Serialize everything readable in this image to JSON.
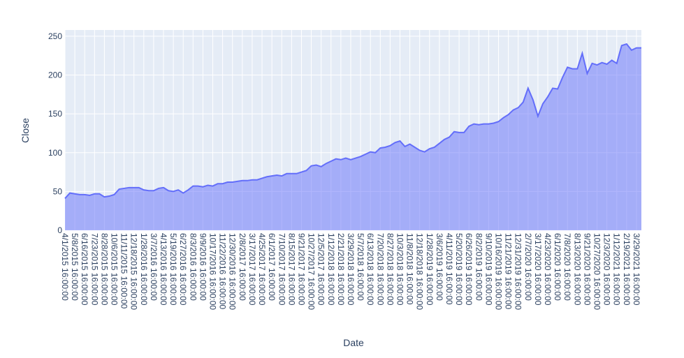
{
  "chart_data": {
    "type": "area",
    "x_label": "Date",
    "y_label": "Close",
    "categories": [
      "4/1/2015 16:00:00",
      null,
      "5/8/2015 16:00:00",
      null,
      "6/16/2015 16:00:00",
      null,
      "7/23/2015 16:00:00",
      null,
      "8/28/2015 16:00:00",
      null,
      "10/6/2015 16:00:00",
      null,
      "11/11/2015 16:00:00",
      null,
      "12/18/2015 16:00:00",
      null,
      "1/28/2016 16:00:00",
      null,
      "3/7/2016 16:00:00",
      null,
      "4/13/2016 16:00:00",
      null,
      "5/19/2016 16:00:00",
      null,
      "6/27/2016 16:00:00",
      null,
      "8/3/2016 16:00:00",
      null,
      "9/9/2016 16:00:00",
      null,
      "10/17/2016 16:00:00",
      null,
      "11/22/2016 16:00:00",
      null,
      "12/30/2016 16:00:00",
      null,
      "2/8/2017 16:00:00",
      null,
      "3/17/2017 16:00:00",
      null,
      "4/25/2017 16:00:00",
      null,
      "6/1/2017 16:00:00",
      null,
      "7/10/2017 16:00:00",
      null,
      "8/15/2017 16:00:00",
      null,
      "9/21/2017 16:00:00",
      null,
      "10/27/2017 16:00:00",
      null,
      "12/5/2017 16:00:00",
      null,
      "1/12/2018 16:00:00",
      null,
      "2/21/2018 16:00:00",
      null,
      "3/29/2018 16:00:00",
      null,
      "5/7/2018 16:00:00",
      null,
      "6/13/2018 16:00:00",
      null,
      "7/20/2018 16:00:00",
      null,
      "8/27/2018 16:00:00",
      null,
      "10/3/2018 16:00:00",
      null,
      "11/8/2018 16:00:00",
      null,
      "12/18/2018 16:00:00",
      null,
      "1/28/2019 16:00:00",
      null,
      "3/6/2019 16:00:00",
      null,
      "4/11/2019 16:00:00",
      null,
      "5/20/2019 16:00:00",
      null,
      "6/26/2019 16:00:00",
      null,
      "8/2/2019 16:00:00",
      null,
      "9/10/2019 16:00:00",
      null,
      "10/16/2019 16:00:00",
      null,
      "11/21/2019 16:00:00",
      null,
      "12/31/2019 16:00:00",
      null,
      "2/7/2020 16:00:00",
      null,
      "3/17/2020 16:00:00",
      null,
      "4/23/2020 16:00:00",
      null,
      "6/1/2020 16:00:00",
      null,
      "7/8/2020 16:00:00",
      null,
      "8/13/2020 16:00:00",
      null,
      "9/21/2020 16:00:00",
      null,
      "10/27/2020 16:00:00",
      null,
      "12/3/2020 16:00:00",
      null,
      "1/12/2021 16:00:00",
      null,
      "2/19/2021 16:00:00",
      null,
      "3/29/2021 16:00:00",
      null
    ],
    "values": [
      41,
      48,
      47,
      46,
      46,
      45,
      47,
      47,
      43,
      44,
      46,
      53,
      54,
      55,
      55,
      55,
      52,
      51,
      51,
      54,
      55,
      51,
      50,
      52,
      48,
      52,
      57,
      57,
      56,
      58,
      57,
      60,
      60,
      62,
      62,
      63,
      64,
      64,
      65,
      65,
      67,
      69,
      70,
      71,
      70,
      73,
      73,
      73,
      75,
      77,
      83,
      84,
      82,
      86,
      89,
      92,
      91,
      93,
      91,
      93,
      95,
      98,
      101,
      100,
      106,
      107,
      109,
      113,
      115,
      108,
      111,
      107,
      103,
      101,
      105,
      107,
      112,
      117,
      120,
      127,
      126,
      126,
      134,
      137,
      136,
      137,
      137,
      138,
      140,
      145,
      149,
      155,
      158,
      165,
      183,
      168,
      147,
      163,
      172,
      183,
      182,
      197,
      210,
      208,
      208,
      228,
      202,
      215,
      213,
      216,
      214,
      219,
      215,
      238,
      240,
      232,
      235,
      235
    ],
    "color": "#636efa",
    "ylim": [
      0,
      258
    ],
    "yticks": [
      0,
      50,
      100,
      150,
      200,
      250
    ],
    "grid": true
  }
}
